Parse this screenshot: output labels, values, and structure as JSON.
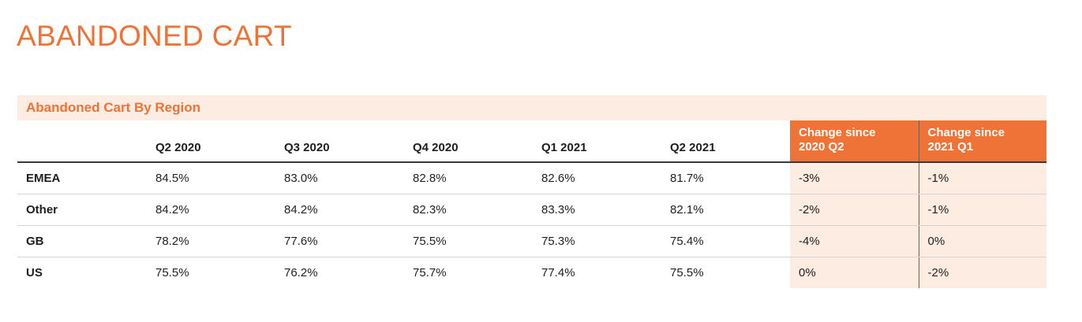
{
  "page": {
    "title": "ABANDONED CART"
  },
  "table": {
    "section_title": "Abandoned Cart By Region",
    "columns": [
      {
        "label_lines": [
          ""
        ]
      },
      {
        "label_lines": [
          "Q2 2020"
        ]
      },
      {
        "label_lines": [
          "Q3 2020"
        ]
      },
      {
        "label_lines": [
          "Q4 2020"
        ]
      },
      {
        "label_lines": [
          "Q1 2021"
        ]
      },
      {
        "label_lines": [
          "Q2 2021"
        ]
      },
      {
        "label_lines": [
          "Change since",
          "2020 Q2"
        ]
      },
      {
        "label_lines": [
          "Change since",
          "2021 Q1"
        ]
      }
    ],
    "rows": [
      {
        "region": "EMEA",
        "cells": [
          "84.5%",
          "83.0%",
          "82.8%",
          "82.6%",
          "81.7%",
          "-3%",
          "-1%"
        ]
      },
      {
        "region": "Other",
        "cells": [
          "84.2%",
          "84.2%",
          "82.3%",
          "83.3%",
          "82.1%",
          "-2%",
          "-1%"
        ]
      },
      {
        "region": "GB",
        "cells": [
          "78.2%",
          "77.6%",
          "75.5%",
          "75.3%",
          "75.4%",
          "-4%",
          "0%"
        ]
      },
      {
        "region": "US",
        "cells": [
          "75.5%",
          "76.2%",
          "75.7%",
          "77.4%",
          "75.5%",
          "0%",
          "-2%"
        ]
      }
    ]
  },
  "colors": {
    "accent": "#ef7236",
    "accent_light": "#fcece1",
    "text": "#222222"
  }
}
